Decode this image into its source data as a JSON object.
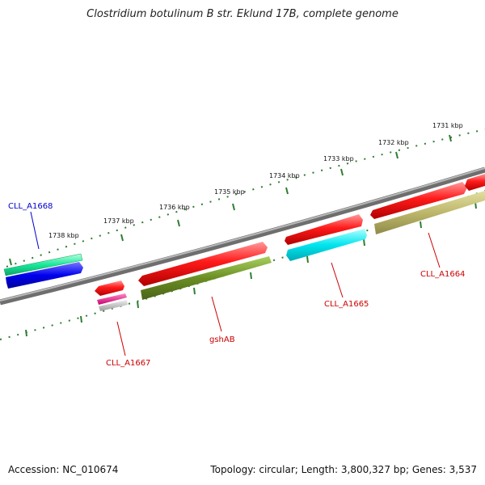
{
  "title": "Clostridium botulinum B str. Eklund 17B, complete genome",
  "footer": {
    "accession": "Accession: NC_010674",
    "summary": "Topology: circular; Length: 3,800,327 bp; Genes: 3,537"
  },
  "scale": {
    "tick_labels": [
      "1738 kbp",
      "1737 kbp",
      "1736 kbp",
      "1735 kbp",
      "1734 kbp",
      "1733 kbp",
      "1732 kbp",
      "1731 kbp"
    ]
  },
  "genes": [
    {
      "id": "CLL_A1668",
      "label": "CLL_A1668",
      "label_color": "#0000cc",
      "colors": [
        "#18e898",
        "#0000ee"
      ]
    },
    {
      "id": "CLL_A1667",
      "label": "CLL_A1667",
      "label_color": "#cc0000",
      "colors": [
        "#ee0000",
        "#e8007a",
        "#bbbbbb"
      ]
    },
    {
      "id": "gshAB",
      "label": "gshAB",
      "label_color": "#cc0000",
      "colors": [
        "#ee0000",
        "#6b8e23"
      ]
    },
    {
      "id": "CLL_A1665",
      "label": "CLL_A1665",
      "label_color": "#cc0000",
      "colors": [
        "#ee0000",
        "#00e5ee"
      ]
    },
    {
      "id": "CLL_A1664",
      "label": "CLL_A1664",
      "label_color": "#cc0000",
      "colors": [
        "#ee0000",
        "#bdb76b"
      ]
    }
  ],
  "colors": {
    "backbone": "#888888",
    "tick": "#2e7d32",
    "forward_strand": "#ee0000"
  }
}
